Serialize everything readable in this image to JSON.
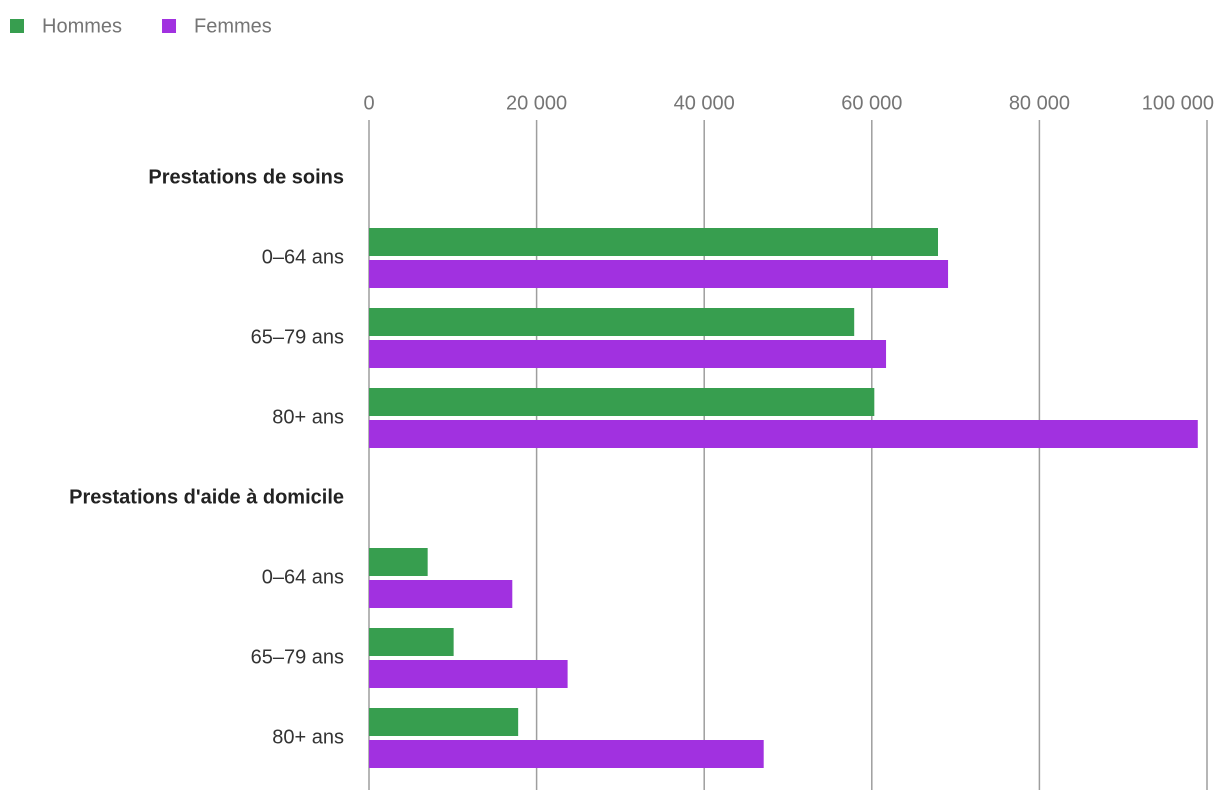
{
  "chart_data": {
    "type": "bar",
    "orientation": "horizontal",
    "categories": [
      "Prestations de soins",
      "0–64 ans",
      "65–79 ans",
      "80+ ans",
      "Prestations d'aide à domicile",
      "0–64 ans",
      "65–79 ans",
      "80+ ans"
    ],
    "series": [
      {
        "name": "Hommes",
        "color": "#379e4f",
        "values": [
          null,
          67900,
          57900,
          60300,
          null,
          7000,
          10100,
          17800
        ]
      },
      {
        "name": "Femmes",
        "color": "#a131e0",
        "values": [
          null,
          69100,
          61700,
          98900,
          null,
          17100,
          23700,
          47100
        ]
      }
    ],
    "xlim": [
      0,
      100000
    ],
    "xticks": [
      0,
      {
        "value": 20000,
        "label": "20 000"
      },
      {
        "value": 40000,
        "label": "40 000"
      },
      {
        "value": 60000,
        "label": "60 000"
      },
      {
        "value": 80000,
        "label": "80 000"
      },
      {
        "value": 100000,
        "label": "100 000"
      }
    ],
    "grid": true,
    "legend": "top-left"
  }
}
